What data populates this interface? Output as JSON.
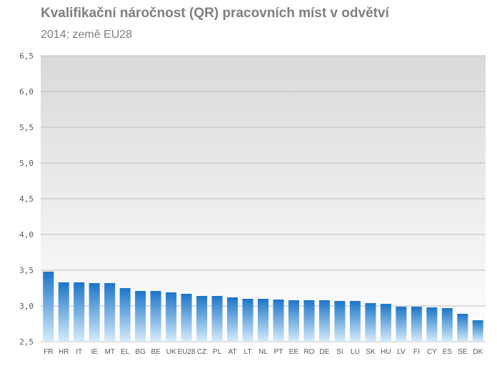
{
  "chart_data": {
    "type": "bar",
    "title": "Kvalifikační náročnost (QR)  pracovních míst v odvětví",
    "subtitle": "2014; země EU28",
    "xlabel": "",
    "ylabel": "",
    "ylim": [
      2.5,
      6.5
    ],
    "yticks": [
      "2,5",
      "3,0",
      "3,5",
      "4,0",
      "4,5",
      "5,0",
      "5,5",
      "6,0",
      "6,5"
    ],
    "grid": true,
    "legend": "none",
    "categories": [
      "FR",
      "HR",
      "IT",
      "IE",
      "MT",
      "EL",
      "BG",
      "BE",
      "UK",
      "EU28",
      "CZ",
      "PL",
      "AT",
      "LT",
      "NL",
      "PT",
      "EE",
      "RO",
      "DE",
      "SI",
      "LU",
      "SK",
      "HU",
      "LV",
      "FI",
      "CY",
      "ES",
      "SE",
      "DK"
    ],
    "values": [
      3.48,
      3.33,
      3.33,
      3.32,
      3.32,
      3.25,
      3.21,
      3.21,
      3.19,
      3.17,
      3.14,
      3.14,
      3.12,
      3.1,
      3.1,
      3.09,
      3.08,
      3.08,
      3.08,
      3.07,
      3.07,
      3.04,
      3.03,
      2.99,
      2.99,
      2.98,
      2.97,
      2.89,
      2.8
    ],
    "colors": {
      "bar_top": "#1c75c8",
      "bar_bottom": "#d6ecfb",
      "plot_top": "#d9d9d9",
      "plot_bottom": "#ffffff",
      "grid": "#bfbfbf"
    }
  }
}
